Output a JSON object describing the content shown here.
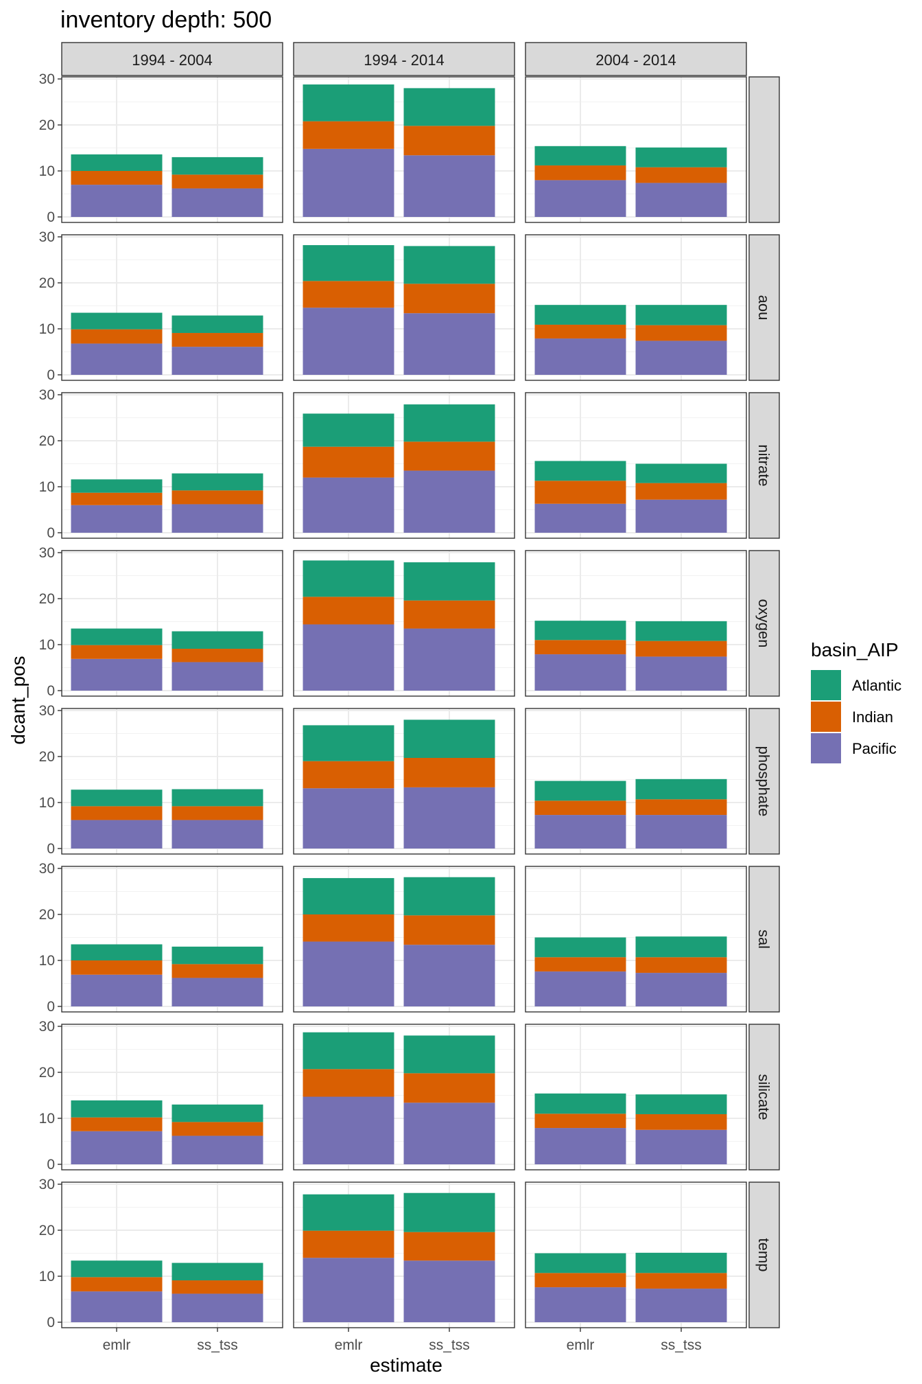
{
  "chart_data": {
    "type": "bar",
    "title": "inventory depth: 500",
    "xlabel": "estimate",
    "ylabel": "dcant_pos",
    "ylim": [
      0,
      30
    ],
    "yticks": [
      0,
      10,
      20,
      30
    ],
    "grid": true,
    "stacked": true,
    "legend": {
      "title": "basin_AIP",
      "position": "right",
      "entries": [
        "Atlantic",
        "Indian",
        "Pacific"
      ]
    },
    "colors": {
      "Atlantic": "#1b9e77",
      "Indian": "#d95f02",
      "Pacific": "#7570b3"
    },
    "categories": [
      "emlr",
      "ss_tss"
    ],
    "columns": [
      "1994 - 2004",
      "1994 - 2014",
      "2004 - 2014"
    ],
    "rows": [
      "",
      "aou",
      "nitrate",
      "oxygen",
      "phosphate",
      "sal",
      "silicate",
      "temp"
    ],
    "panels": [
      [
        {
          "Pacific": [
            7.0,
            6.2
          ],
          "Indian": [
            3.0,
            3.0
          ],
          "Atlantic": [
            3.6,
            3.8
          ]
        },
        {
          "Pacific": [
            14.8,
            13.4
          ],
          "Indian": [
            6.0,
            6.4
          ],
          "Atlantic": [
            8.0,
            8.2
          ]
        },
        {
          "Pacific": [
            8.0,
            7.4
          ],
          "Indian": [
            3.2,
            3.4
          ],
          "Atlantic": [
            4.2,
            4.3
          ]
        }
      ],
      [
        {
          "Pacific": [
            6.8,
            6.1
          ],
          "Indian": [
            3.1,
            3.0
          ],
          "Atlantic": [
            3.6,
            3.8
          ]
        },
        {
          "Pacific": [
            14.6,
            13.4
          ],
          "Indian": [
            5.8,
            6.4
          ],
          "Atlantic": [
            7.8,
            8.2
          ]
        },
        {
          "Pacific": [
            7.9,
            7.4
          ],
          "Indian": [
            3.0,
            3.4
          ],
          "Atlantic": [
            4.3,
            4.4
          ]
        }
      ],
      [
        {
          "Pacific": [
            6.0,
            6.2
          ],
          "Indian": [
            2.7,
            3.0
          ],
          "Atlantic": [
            2.9,
            3.7
          ]
        },
        {
          "Pacific": [
            12.0,
            13.5
          ],
          "Indian": [
            6.7,
            6.3
          ],
          "Atlantic": [
            7.2,
            8.1
          ]
        },
        {
          "Pacific": [
            6.3,
            7.2
          ],
          "Indian": [
            5.0,
            3.6
          ],
          "Atlantic": [
            4.3,
            4.2
          ]
        }
      ],
      [
        {
          "Pacific": [
            6.9,
            6.2
          ],
          "Indian": [
            3.0,
            2.9
          ],
          "Atlantic": [
            3.6,
            3.8
          ]
        },
        {
          "Pacific": [
            14.4,
            13.5
          ],
          "Indian": [
            6.0,
            6.1
          ],
          "Atlantic": [
            7.9,
            8.3
          ]
        },
        {
          "Pacific": [
            7.9,
            7.4
          ],
          "Indian": [
            3.1,
            3.4
          ],
          "Atlantic": [
            4.2,
            4.3
          ]
        }
      ],
      [
        {
          "Pacific": [
            6.2,
            6.2
          ],
          "Indian": [
            3.0,
            3.0
          ],
          "Atlantic": [
            3.6,
            3.7
          ]
        },
        {
          "Pacific": [
            13.1,
            13.3
          ],
          "Indian": [
            5.9,
            6.4
          ],
          "Atlantic": [
            7.8,
            8.3
          ]
        },
        {
          "Pacific": [
            7.3,
            7.3
          ],
          "Indian": [
            3.1,
            3.4
          ],
          "Atlantic": [
            4.3,
            4.4
          ]
        }
      ],
      [
        {
          "Pacific": [
            6.9,
            6.2
          ],
          "Indian": [
            3.1,
            3.0
          ],
          "Atlantic": [
            3.5,
            3.8
          ]
        },
        {
          "Pacific": [
            14.1,
            13.4
          ],
          "Indian": [
            5.9,
            6.4
          ],
          "Atlantic": [
            7.9,
            8.3
          ]
        },
        {
          "Pacific": [
            7.6,
            7.3
          ],
          "Indian": [
            3.1,
            3.4
          ],
          "Atlantic": [
            4.3,
            4.5
          ]
        }
      ],
      [
        {
          "Pacific": [
            7.2,
            6.2
          ],
          "Indian": [
            3.0,
            3.0
          ],
          "Atlantic": [
            3.7,
            3.8
          ]
        },
        {
          "Pacific": [
            14.7,
            13.4
          ],
          "Indian": [
            6.0,
            6.4
          ],
          "Atlantic": [
            8.0,
            8.2
          ]
        },
        {
          "Pacific": [
            7.9,
            7.5
          ],
          "Indian": [
            3.1,
            3.4
          ],
          "Atlantic": [
            4.4,
            4.3
          ]
        }
      ],
      [
        {
          "Pacific": [
            6.7,
            6.2
          ],
          "Indian": [
            3.1,
            2.9
          ],
          "Atlantic": [
            3.6,
            3.8
          ]
        },
        {
          "Pacific": [
            14.0,
            13.4
          ],
          "Indian": [
            5.9,
            6.2
          ],
          "Atlantic": [
            7.9,
            8.5
          ]
        },
        {
          "Pacific": [
            7.6,
            7.3
          ],
          "Indian": [
            3.1,
            3.4
          ],
          "Atlantic": [
            4.3,
            4.4
          ]
        }
      ]
    ]
  }
}
